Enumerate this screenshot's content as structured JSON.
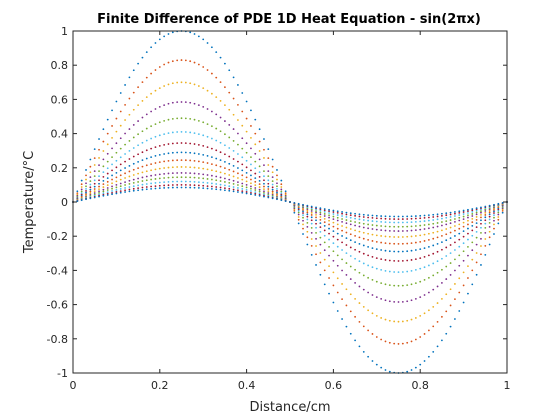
{
  "chart_data": {
    "type": "scatter",
    "title": "Finite Difference of PDE 1D Heat Equation - sin(2πx)",
    "xlabel": "Distance/cm",
    "ylabel": "Temperature/°C",
    "xlim": [
      0,
      1
    ],
    "ylim": [
      -1,
      1
    ],
    "xticks": [
      0,
      0.2,
      0.4,
      0.6,
      0.8,
      1
    ],
    "xtick_labels": [
      "0",
      "0.2",
      "0.4",
      "0.6",
      "0.8",
      "1"
    ],
    "yticks": [
      -1,
      -0.8,
      -0.6,
      -0.4,
      -0.2,
      0,
      0.2,
      0.4,
      0.6,
      0.8,
      1
    ],
    "ytick_labels": [
      "-1",
      "-0.8",
      "-0.6",
      "-0.4",
      "-0.2",
      "0",
      "0.2",
      "0.4",
      "0.6",
      "0.8",
      "1"
    ],
    "grid": false,
    "box": true,
    "marker": "dot",
    "series_function": "A·sin(2πx)",
    "x_samples": 101,
    "series": [
      {
        "amplitude": 1.0,
        "color": "#0072BD"
      },
      {
        "amplitude": 0.83,
        "color": "#D95319"
      },
      {
        "amplitude": 0.7,
        "color": "#EDB120"
      },
      {
        "amplitude": 0.585,
        "color": "#7E2F8E"
      },
      {
        "amplitude": 0.49,
        "color": "#77AC30"
      },
      {
        "amplitude": 0.41,
        "color": "#4DBEEE"
      },
      {
        "amplitude": 0.345,
        "color": "#A2142F"
      },
      {
        "amplitude": 0.29,
        "color": "#0072BD"
      },
      {
        "amplitude": 0.245,
        "color": "#D95319"
      },
      {
        "amplitude": 0.205,
        "color": "#EDB120"
      },
      {
        "amplitude": 0.17,
        "color": "#7E2F8E"
      },
      {
        "amplitude": 0.145,
        "color": "#77AC30"
      },
      {
        "amplitude": 0.12,
        "color": "#4DBEEE"
      },
      {
        "amplitude": 0.1,
        "color": "#A2142F"
      },
      {
        "amplitude": 0.085,
        "color": "#0072BD"
      }
    ]
  }
}
